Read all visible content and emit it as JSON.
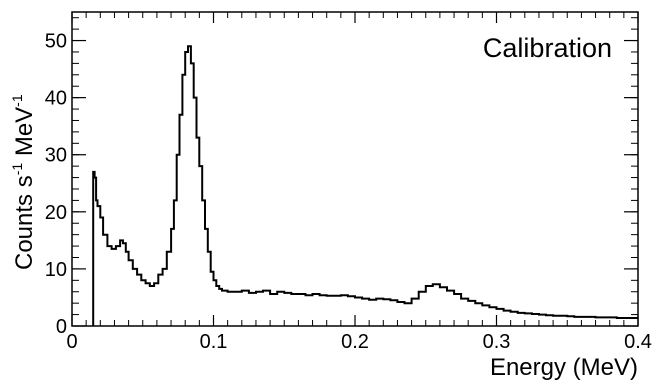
{
  "chart_data": {
    "type": "line",
    "step": true,
    "title": "Calibration",
    "xlabel": "Energy (MeV)",
    "ylabel_main": "Counts s",
    "ylabel_sup1": "-1",
    "ylabel_mid": " MeV",
    "ylabel_sup2": "-1",
    "xlim": [
      0,
      0.4
    ],
    "ylim": [
      0,
      55
    ],
    "xticks": [
      0,
      0.1,
      0.2,
      0.3,
      0.4
    ],
    "xtick_labels": [
      "0",
      "0.1",
      "0.2",
      "0.3",
      "0.4"
    ],
    "yticks": [
      0,
      10,
      20,
      30,
      40,
      50
    ],
    "ytick_labels": [
      "0",
      "10",
      "20",
      "30",
      "40",
      "50"
    ],
    "x": [
      0.015,
      0.016,
      0.017,
      0.018,
      0.02,
      0.022,
      0.025,
      0.028,
      0.031,
      0.034,
      0.036,
      0.038,
      0.04,
      0.043,
      0.046,
      0.049,
      0.052,
      0.055,
      0.058,
      0.061,
      0.064,
      0.067,
      0.07,
      0.072,
      0.074,
      0.076,
      0.078,
      0.08,
      0.082,
      0.084,
      0.086,
      0.088,
      0.09,
      0.092,
      0.094,
      0.096,
      0.098,
      0.1,
      0.102,
      0.104,
      0.106,
      0.11,
      0.115,
      0.12,
      0.125,
      0.13,
      0.135,
      0.14,
      0.145,
      0.15,
      0.155,
      0.16,
      0.165,
      0.17,
      0.175,
      0.18,
      0.185,
      0.19,
      0.195,
      0.2,
      0.205,
      0.21,
      0.215,
      0.22,
      0.225,
      0.23,
      0.235,
      0.24,
      0.245,
      0.25,
      0.255,
      0.26,
      0.265,
      0.27,
      0.275,
      0.28,
      0.285,
      0.29,
      0.295,
      0.3,
      0.305,
      0.31,
      0.315,
      0.32,
      0.325,
      0.33,
      0.335,
      0.34,
      0.345,
      0.35,
      0.355,
      0.36,
      0.365,
      0.37,
      0.375,
      0.38,
      0.385,
      0.39,
      0.395,
      0.4
    ],
    "y": [
      27,
      26,
      22,
      21,
      19,
      16,
      14,
      13.5,
      14,
      15,
      14.5,
      13,
      11.5,
      10,
      9,
      8,
      7.5,
      7,
      7.5,
      9,
      10,
      13,
      17,
      22,
      30,
      37,
      44,
      48,
      49,
      46,
      40,
      33,
      28,
      22,
      17,
      13,
      9.5,
      8,
      7,
      6.5,
      6.2,
      6,
      6,
      6.2,
      5.8,
      6,
      6.2,
      5.6,
      6,
      5.8,
      5.6,
      5.6,
      5.4,
      5.6,
      5.4,
      5.3,
      5.3,
      5.4,
      5.2,
      5,
      4.8,
      4.6,
      4.8,
      4.7,
      4.5,
      4.2,
      4,
      4.8,
      6,
      7,
      7.3,
      6.8,
      6.2,
      5.6,
      4.8,
      4.4,
      4,
      3.6,
      3.3,
      3,
      2.7,
      2.5,
      2.3,
      2.2,
      2.1,
      2,
      1.9,
      1.8,
      1.8,
      1.7,
      1.6,
      1.6,
      1.6,
      1.5,
      1.5,
      1.5,
      1.4,
      1.4,
      1.4,
      1.4
    ],
    "grid": false,
    "legend": "none"
  }
}
